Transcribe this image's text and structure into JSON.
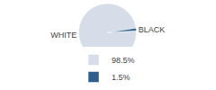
{
  "chart_data": {
    "type": "pie",
    "categories": [
      "WHITE",
      "BLACK"
    ],
    "values": [
      98.5,
      1.5
    ],
    "value_labels": [
      "98.5%",
      "1.5%"
    ],
    "colors": [
      "#d6dde8",
      "#2d5f8a"
    ],
    "legend": "bottom"
  }
}
